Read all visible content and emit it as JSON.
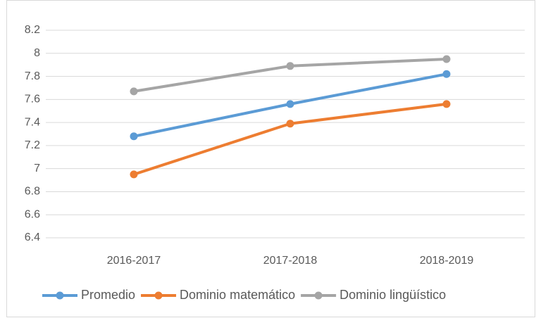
{
  "chart_data": {
    "type": "line",
    "categories": [
      "2016-2017",
      "2017-2018",
      "2018-2019"
    ],
    "series": [
      {
        "name": "Promedio",
        "color": "#5b9bd5",
        "values": [
          7.28,
          7.56,
          7.82
        ]
      },
      {
        "name": "Dominio matemático",
        "color": "#ed7d31",
        "values": [
          6.95,
          7.39,
          7.56
        ]
      },
      {
        "name": "Dominio lingüístico",
        "color": "#a5a5a5",
        "values": [
          7.67,
          7.89,
          7.95
        ]
      }
    ],
    "ylim": [
      6.4,
      8.2
    ],
    "yticks": [
      6.4,
      6.6,
      6.8,
      7,
      7.2,
      7.4,
      7.6,
      7.8,
      8,
      8.2
    ],
    "grid": true,
    "legend": "bottom"
  }
}
